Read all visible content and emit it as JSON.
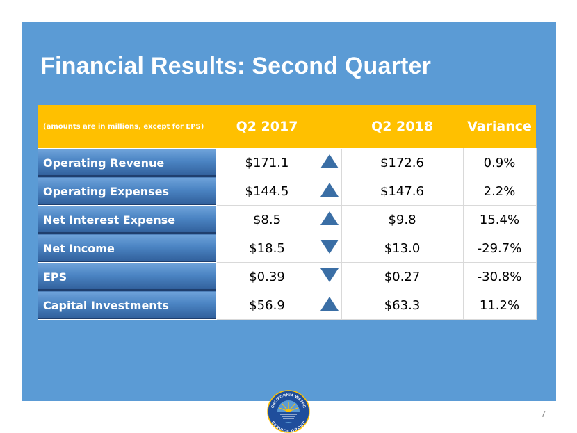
{
  "slide": {
    "title": "Financial Results: Second Quarter",
    "page_number": "7",
    "colors": {
      "panel": "#5b9bd5",
      "header": "#ffc000",
      "label": "#2f5d98",
      "arrow": "#3a6ea5"
    }
  },
  "table": {
    "note": "(amounts are in millions, except for EPS)",
    "columns": [
      "Q2 2017",
      "Q2 2018",
      "Variance"
    ],
    "rows": [
      {
        "label": "Operating Revenue",
        "q2_2017": "$171.1",
        "direction": "up",
        "q2_2018": "$172.6",
        "variance": "0.9%"
      },
      {
        "label": "Operating Expenses",
        "q2_2017": "$144.5",
        "direction": "up",
        "q2_2018": "$147.6",
        "variance": "2.2%"
      },
      {
        "label": "Net Interest Expense",
        "q2_2017": "$8.5",
        "direction": "up",
        "q2_2018": "$9.8",
        "variance": "15.4%"
      },
      {
        "label": "Net Income",
        "q2_2017": "$18.5",
        "direction": "down",
        "q2_2018": "$13.0",
        "variance": "-29.7%"
      },
      {
        "label": "EPS",
        "q2_2017": "$0.39",
        "direction": "down",
        "q2_2018": "$0.27",
        "variance": "-30.8%"
      },
      {
        "label": "Capital Investments",
        "q2_2017": "$56.9",
        "direction": "up",
        "q2_2018": "$63.3",
        "variance": "11.2%"
      }
    ]
  },
  "logo": {
    "top_text": "CALIFORNIA WATER",
    "bottom_text": "SERVICE GROUP"
  }
}
